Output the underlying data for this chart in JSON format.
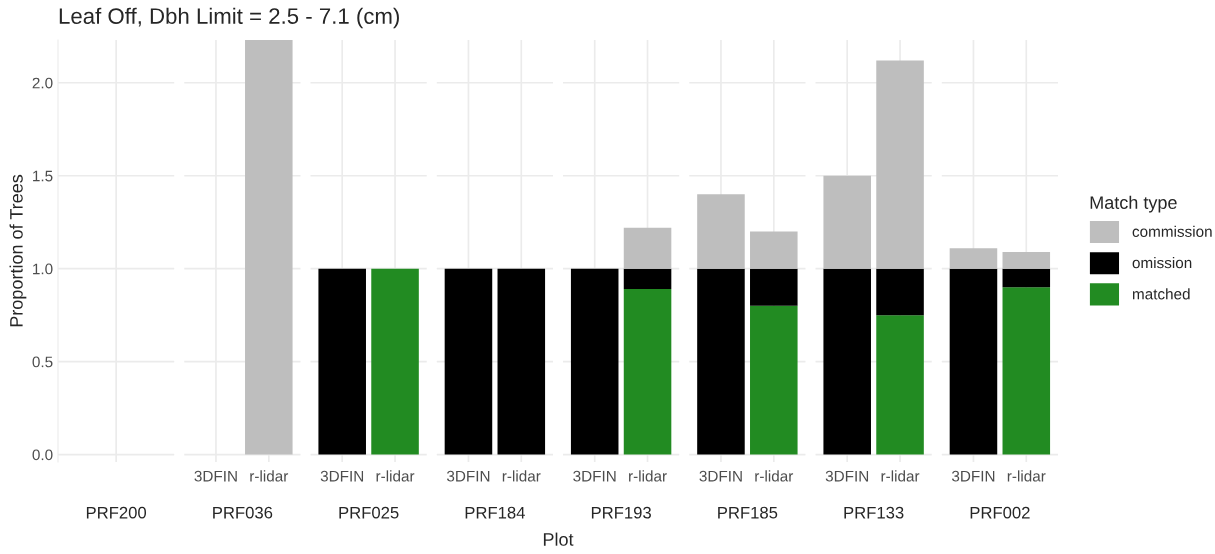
{
  "chart_data": [
    {
      "type": "bar",
      "title": "Leaf Off, Dbh Limit = 2.5 - 7.1 (cm)",
      "ylabel": "Proportion of Trees",
      "xlabel": "PRF200",
      "annotations": [
        "Plot"
      ],
      "categories": [
        null
      ],
      "stacked": true,
      "ylim": [
        -0.04,
        2.23
      ],
      "yticks": [
        {
          "value": 0,
          "label": "0.0"
        },
        0.5,
        {
          "value": 1,
          "label": "1.0"
        },
        1.5,
        {
          "value": 2,
          "label": "2.0"
        }
      ],
      "grid": true,
      "tick_labels": "y",
      "series": [
        {
          "color": "#228b22",
          "values": [
            0
          ]
        },
        {
          "color": "#000000",
          "values": [
            0
          ]
        },
        {
          "color": "#bebebe",
          "values": [
            0
          ]
        }
      ]
    },
    {
      "type": "bar",
      "xlabel": "PRF036",
      "categories": [
        "3DFIN",
        "r-lidar"
      ],
      "stacked": true,
      "ylim": [
        -0.04,
        2.23
      ],
      "grid": true,
      "tick_labels": "x",
      "series": [
        {
          "color": "#228b22",
          "values": [
            null,
            0
          ]
        },
        {
          "color": "#000000",
          "values": [
            null,
            0
          ]
        },
        {
          "color": "#bebebe",
          "values": [
            null,
            2.23
          ]
        }
      ]
    },
    {
      "type": "bar",
      "xlabel": "PRF025",
      "categories": [
        "3DFIN",
        "r-lidar"
      ],
      "stacked": true,
      "ylim": [
        -0.04,
        2.23
      ],
      "grid": true,
      "tick_labels": "x",
      "series": [
        {
          "color": "#228b22",
          "values": [
            0,
            1
          ]
        },
        {
          "color": "#000000",
          "values": [
            1,
            0
          ]
        },
        {
          "color": "#bebebe",
          "values": [
            0,
            0
          ]
        }
      ]
    },
    {
      "type": "bar",
      "xlabel": "PRF184",
      "categories": [
        "3DFIN",
        "r-lidar"
      ],
      "stacked": true,
      "ylim": [
        -0.04,
        2.23
      ],
      "grid": true,
      "tick_labels": "x",
      "series": [
        {
          "color": "#228b22",
          "values": [
            0,
            0
          ]
        },
        {
          "color": "#000000",
          "values": [
            1,
            1
          ]
        },
        {
          "color": "#bebebe",
          "values": [
            0,
            0
          ]
        }
      ]
    },
    {
      "type": "bar",
      "xlabel": "PRF193",
      "categories": [
        "3DFIN",
        "r-lidar"
      ],
      "stacked": true,
      "ylim": [
        -0.04,
        2.23
      ],
      "grid": true,
      "tick_labels": "x",
      "series": [
        {
          "color": "#228b22",
          "values": [
            0,
            0.89
          ]
        },
        {
          "color": "#000000",
          "values": [
            1,
            0.11
          ]
        },
        {
          "color": "#bebebe",
          "values": [
            0,
            0.22
          ]
        }
      ]
    },
    {
      "type": "bar",
      "xlabel": "PRF185",
      "categories": [
        "3DFIN",
        "r-lidar"
      ],
      "stacked": true,
      "ylim": [
        -0.04,
        2.23
      ],
      "grid": true,
      "tick_labels": "x",
      "series": [
        {
          "color": "#228b22",
          "values": [
            0,
            0.8
          ]
        },
        {
          "color": "#000000",
          "values": [
            1,
            0.2
          ]
        },
        {
          "color": "#bebebe",
          "values": [
            0.4,
            0.2
          ]
        }
      ]
    },
    {
      "type": "bar",
      "xlabel": "PRF133",
      "categories": [
        "3DFIN",
        "r-lidar"
      ],
      "stacked": true,
      "ylim": [
        -0.04,
        2.23
      ],
      "grid": true,
      "tick_labels": "x",
      "series": [
        {
          "color": "#228b22",
          "values": [
            0,
            0.75
          ]
        },
        {
          "color": "#000000",
          "values": [
            1,
            0.25
          ]
        },
        {
          "color": "#bebebe",
          "values": [
            0.5,
            1.12
          ]
        }
      ]
    },
    {
      "type": "bar",
      "xlabel": "PRF002",
      "categories": [
        "3DFIN",
        "r-lidar"
      ],
      "stacked": true,
      "ylim": [
        -0.04,
        2.23
      ],
      "grid": true,
      "tick_labels": "x",
      "legend": "right",
      "legend_title": "Match type",
      "series": [
        {
          "name": "matched",
          "color": "#228b22",
          "values": [
            0,
            0.9
          ]
        },
        {
          "name": "omission",
          "color": "#000000",
          "values": [
            1,
            0.1
          ]
        },
        {
          "name": "commission",
          "color": "#bebebe",
          "values": [
            0.11,
            0.09
          ]
        }
      ]
    }
  ]
}
